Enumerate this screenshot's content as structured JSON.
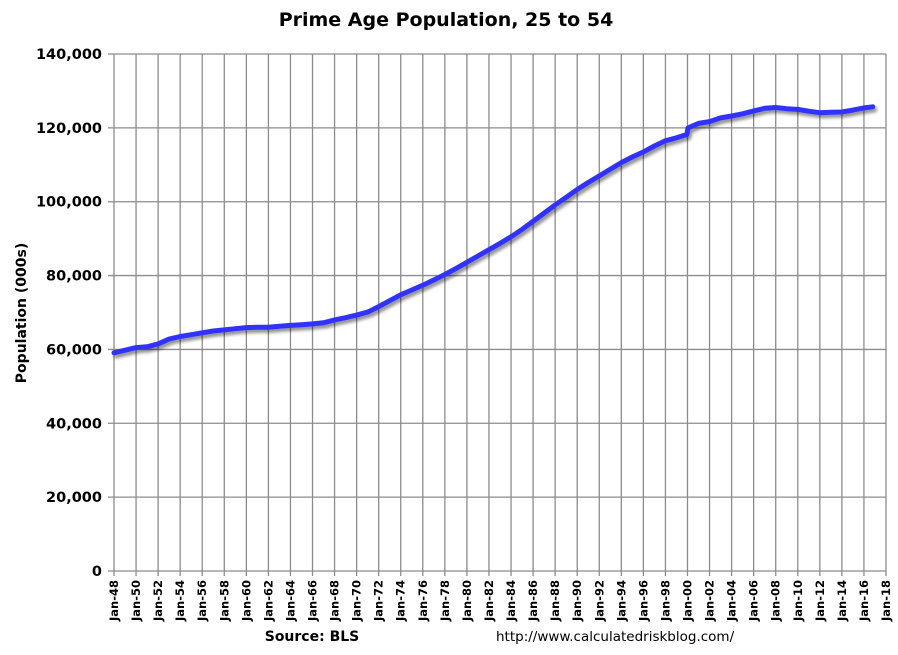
{
  "chart_data": {
    "type": "line",
    "title": "Prime Age Population, 25 to 54",
    "xlabel": "",
    "ylabel": "Population (000s)",
    "ylim": [
      0,
      140000
    ],
    "yticks": [
      0,
      20000,
      40000,
      60000,
      80000,
      100000,
      120000,
      140000
    ],
    "ytick_labels": [
      "0",
      "20,000",
      "40,000",
      "60,000",
      "80,000",
      "100,000",
      "120,000",
      "140,000"
    ],
    "xtick_labels": [
      "Jan-48",
      "Jan-50",
      "Jan-52",
      "Jan-54",
      "Jan-56",
      "Jan-58",
      "Jan-60",
      "Jan-62",
      "Jan-64",
      "Jan-66",
      "Jan-68",
      "Jan-70",
      "Jan-72",
      "Jan-74",
      "Jan-76",
      "Jan-78",
      "Jan-80",
      "Jan-82",
      "Jan-84",
      "Jan-86",
      "Jan-88",
      "Jan-90",
      "Jan-92",
      "Jan-94",
      "Jan-96",
      "Jan-98",
      "Jan-00",
      "Jan-02",
      "Jan-04",
      "Jan-06",
      "Jan-08",
      "Jan-10",
      "Jan-12",
      "Jan-14",
      "Jan-16",
      "Jan-18"
    ],
    "xlim": [
      1948,
      2018
    ],
    "grid": {
      "vertical": true,
      "horizontal": true
    },
    "legend": null,
    "series": [
      {
        "name": "Prime Age Population, 25 to 54",
        "color": "#3333ff",
        "x": [
          1948,
          1949,
          1950,
          1951,
          1952,
          1953,
          1954,
          1955,
          1956,
          1957,
          1958,
          1959,
          1960,
          1961,
          1962,
          1963,
          1964,
          1965,
          1966,
          1967,
          1968,
          1969,
          1970,
          1971,
          1972,
          1973,
          1974,
          1975,
          1976,
          1977,
          1978,
          1979,
          1980,
          1981,
          1982,
          1983,
          1984,
          1985,
          1986,
          1987,
          1988,
          1989,
          1990,
          1991,
          1992,
          1993,
          1994,
          1995,
          1996,
          1997,
          1998,
          1999,
          1999.95,
          2000.05,
          2001,
          2002,
          2003,
          2004,
          2005,
          2006,
          2007,
          2008,
          2009,
          2010,
          2011,
          2012,
          2013,
          2014,
          2015,
          2016,
          2016.8
        ],
        "values": [
          59100,
          59800,
          60500,
          60700,
          61500,
          62800,
          63500,
          64000,
          64500,
          65000,
          65300,
          65600,
          65900,
          66000,
          66000,
          66300,
          66500,
          66700,
          66900,
          67200,
          68000,
          68600,
          69300,
          70100,
          71600,
          73200,
          74800,
          76100,
          77400,
          78800,
          80300,
          81900,
          83600,
          85300,
          87000,
          88700,
          90500,
          92500,
          94700,
          96900,
          99100,
          101200,
          103300,
          105200,
          107000,
          108800,
          110600,
          112100,
          113500,
          115100,
          116500,
          117300,
          118200,
          120000,
          121200,
          121700,
          122700,
          123200,
          123800,
          124600,
          125300,
          125500,
          125200,
          125000,
          124500,
          124100,
          124200,
          124300,
          124800,
          125400,
          125700
        ]
      }
    ],
    "annotations": [
      "Source: BLS",
      "http://www.calculatedriskblog.com/"
    ]
  },
  "footer": {
    "source": "Source: BLS",
    "url": "http://www.calculatedriskblog.com/"
  }
}
